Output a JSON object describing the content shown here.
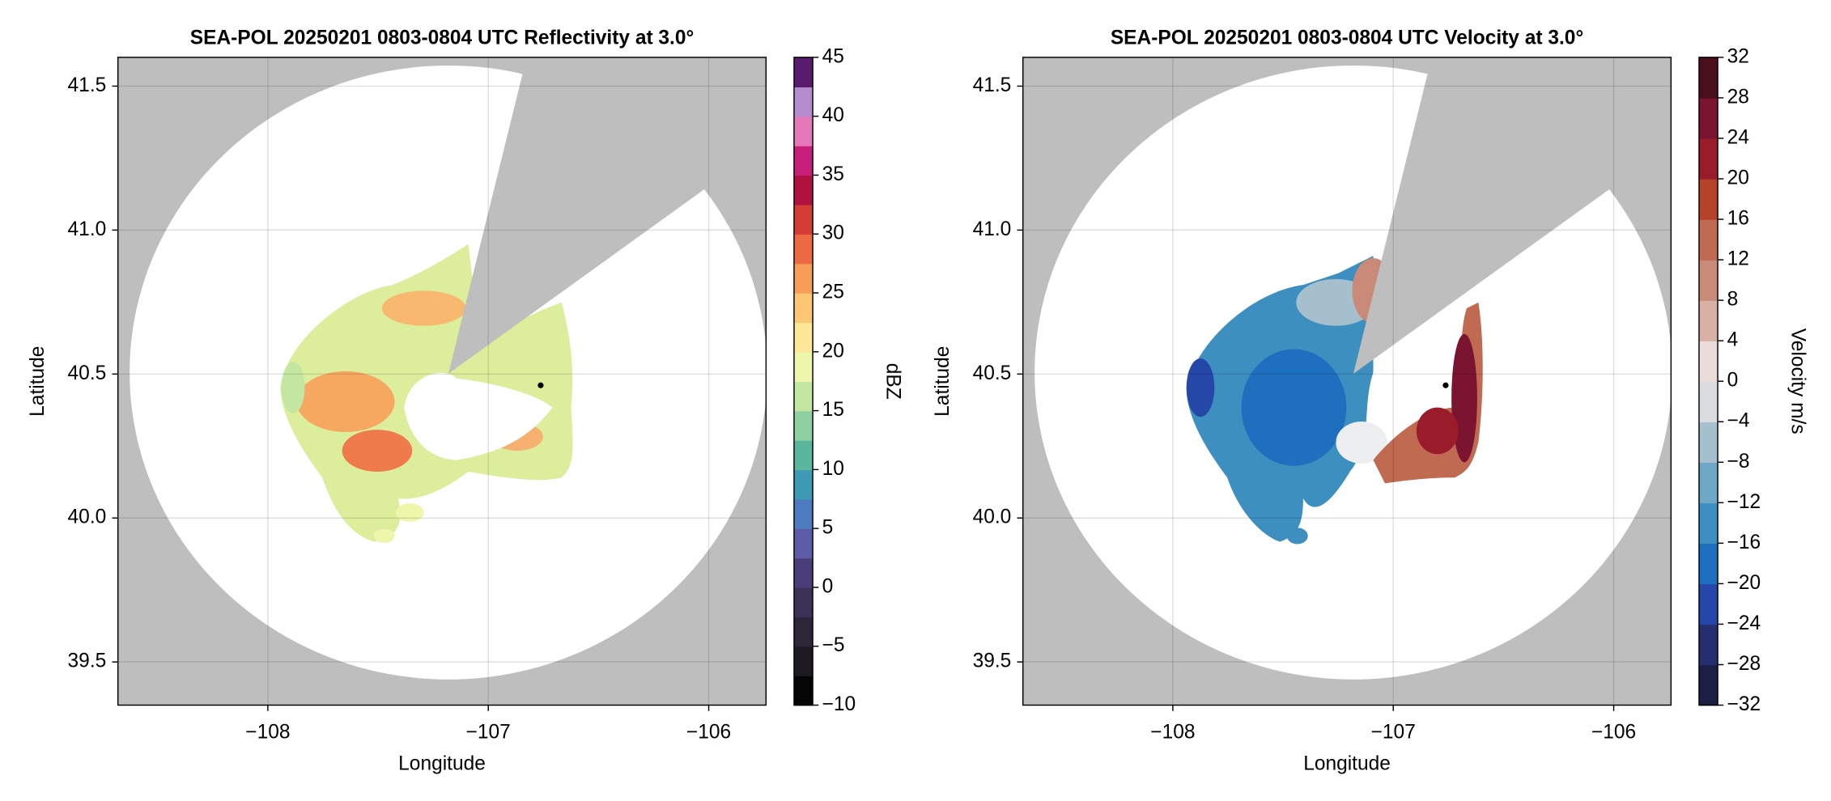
{
  "chart_data": [
    {
      "type": "map",
      "title": "SEA-POL 20250201 0803-0804 UTC Reflectivity at 3.0°",
      "xlabel": "Longitude",
      "ylabel": "Latitude",
      "xlim": [
        -108.68,
        -105.74
      ],
      "ylim": [
        39.35,
        41.6
      ],
      "xticks": [
        {
          "value": -108,
          "label": "−108"
        },
        {
          "value": -107,
          "label": "−107"
        },
        {
          "value": -106,
          "label": "−106"
        }
      ],
      "yticks": [
        39.5,
        {
          "value": 40,
          "label": "40.0"
        },
        40.5,
        {
          "value": 41,
          "label": "41.0"
        },
        41.5
      ],
      "grid": true,
      "colorbar": {
        "label": "dBZ",
        "lim": [
          -10,
          45
        ],
        "ticks": [
          {
            "value": -10,
            "label": "−10"
          },
          {
            "value": -5,
            "label": "−5"
          },
          0,
          5,
          10,
          15,
          20,
          25,
          30,
          35,
          40,
          45
        ],
        "colors": [
          "#050505",
          "#1c1a20",
          "#2c2638",
          "#3b3155",
          "#4a3e7a",
          "#5d5ca6",
          "#4f7cc0",
          "#3f9ab5",
          "#5ab79e",
          "#8ed0a0",
          "#c3e6a0",
          "#eef6ac",
          "#fde89a",
          "#fcc775",
          "#f79d5a",
          "#ec6a43",
          "#d63c37",
          "#b0123f",
          "#c8207a",
          "#e478b8",
          "#b58bcf",
          "#5a1a6e"
        ]
      }
    },
    {
      "type": "map",
      "title": "SEA-POL 20250201 0803-0804 UTC Velocity at 3.0°",
      "xlabel": "Longitude",
      "ylabel": "Latitude",
      "xlim": [
        -108.68,
        -105.74
      ],
      "ylim": [
        39.35,
        41.6
      ],
      "xticks": [
        {
          "value": -108,
          "label": "−108"
        },
        {
          "value": -107,
          "label": "−107"
        },
        {
          "value": -106,
          "label": "−106"
        }
      ],
      "yticks": [
        39.5,
        {
          "value": 40,
          "label": "40.0"
        },
        40.5,
        {
          "value": 41,
          "label": "41.0"
        },
        41.5
      ],
      "grid": true,
      "colorbar": {
        "label": "Velocity m/s",
        "lim": [
          -32,
          32
        ],
        "ticks": [
          {
            "value": -32,
            "label": "−32"
          },
          {
            "value": -28,
            "label": "−28"
          },
          {
            "value": -24,
            "label": "−24"
          },
          {
            "value": -20,
            "label": "−20"
          },
          {
            "value": -16,
            "label": "−16"
          },
          {
            "value": -12,
            "label": "−12"
          },
          {
            "value": -8,
            "label": "−8"
          },
          {
            "value": -4,
            "label": "−4"
          },
          0,
          4,
          8,
          12,
          16,
          20,
          24,
          28,
          32
        ],
        "colors": [
          "#1b1f45",
          "#252f70",
          "#2447a8",
          "#1f6fc0",
          "#3d8fc0",
          "#6fa8c6",
          "#a6bfcc",
          "#dadcdf",
          "#eadcdb",
          "#d8b0a4",
          "#ca8a78",
          "#c06a52",
          "#b5432a",
          "#9a1b2a",
          "#7a1430",
          "#4a0f1c"
        ]
      }
    }
  ]
}
